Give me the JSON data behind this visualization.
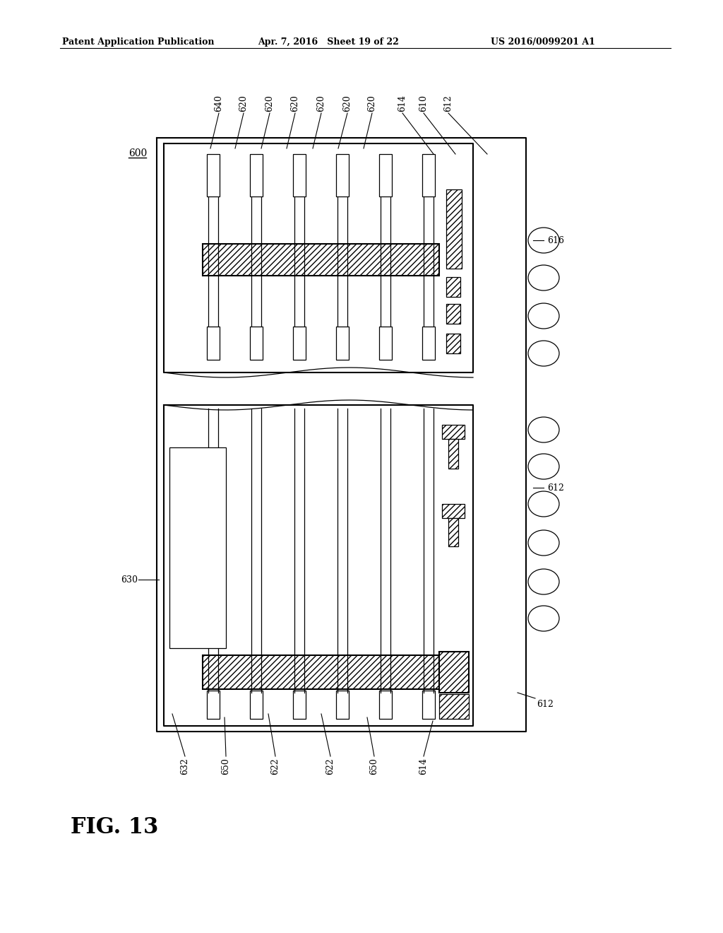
{
  "header_left": "Patent Application Publication",
  "header_mid": "Apr. 7, 2016   Sheet 19 of 22",
  "header_right": "US 2016/0099201 A1",
  "fig_label": "FIG. 13",
  "bg_color": "#ffffff",
  "line_color": "#000000"
}
